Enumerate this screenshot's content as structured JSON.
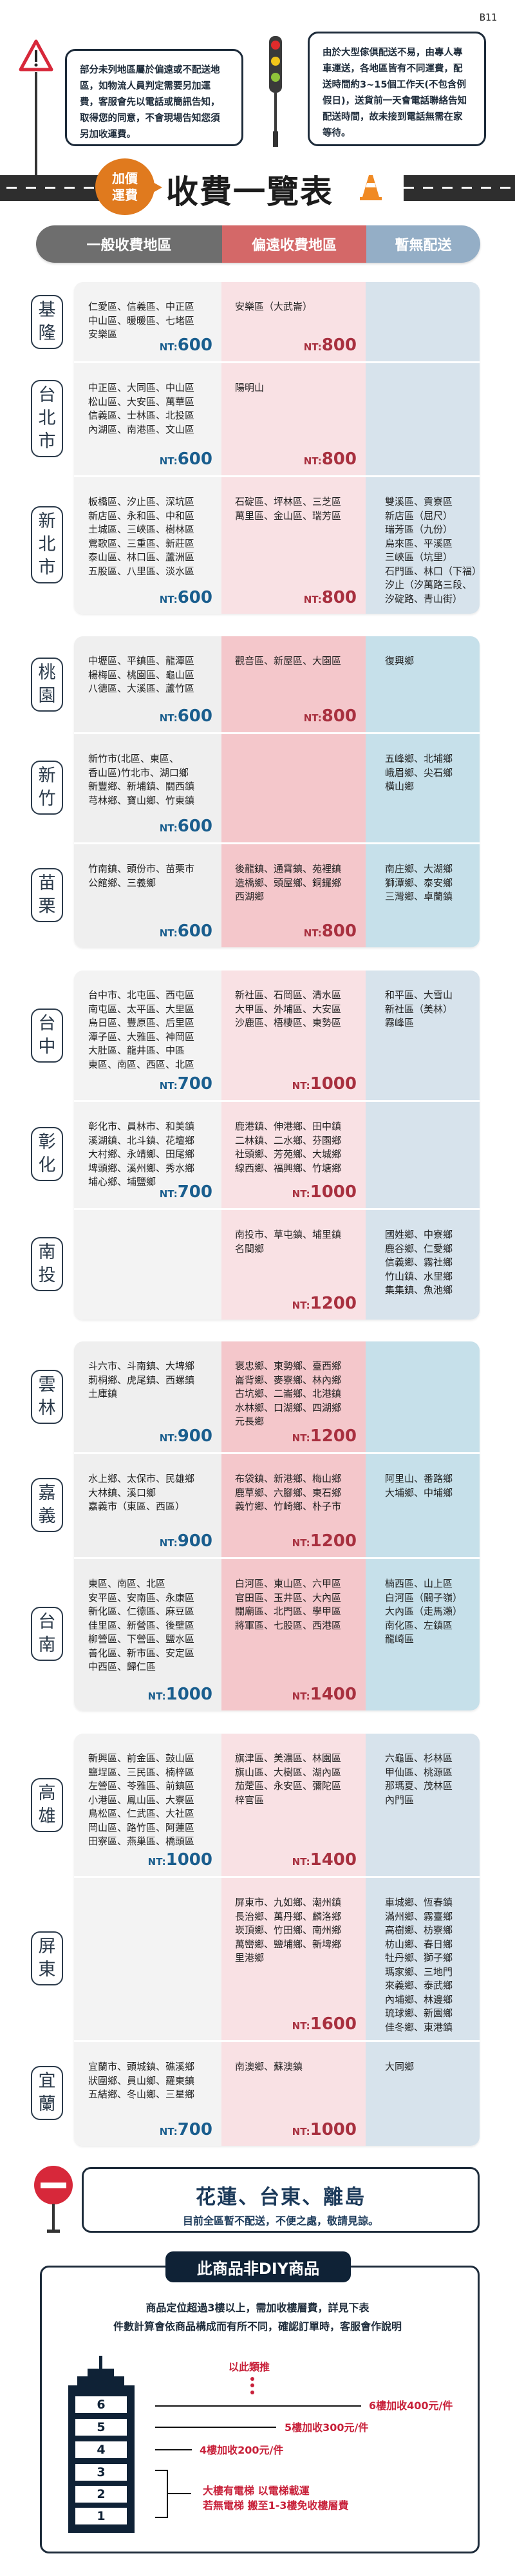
{
  "page_code": "B11",
  "notes": {
    "left": "部分未列地區屬於偏遠或不配送地區，如物流人員判定需要另加運費，客服會先以電話或簡訊告知，取得您的同意，不會現場告知您須另加收運費。",
    "right": "由於大型傢俱配送不易，由專人專車運送，各地區皆有不同運費，配送時間約3~15個工作天(不包含例假日)，送貨前一天會電話聯絡告知配送時間，故未接到電話無需在家等待。"
  },
  "header": {
    "badge_line1": "加價",
    "badge_line2": "運費",
    "title": "收費一覽表"
  },
  "tabs": [
    {
      "label": "一般收費地區",
      "color": "#6e6e6e"
    },
    {
      "label": "偏遠收費地區",
      "color": "#d46868"
    },
    {
      "label": "暫無配送",
      "color": "#94aec6"
    }
  ],
  "price_prefix": "NT:",
  "blocks": [
    {
      "rows": [
        {
          "region": "基隆",
          "general": [
            "仁愛區、信義區、中正區",
            "中山區、暖暖區、七堵區",
            "安樂區"
          ],
          "general_price": "600",
          "remote": [
            "安樂區（大武崙）"
          ],
          "remote_price": "800",
          "none": []
        },
        {
          "region": "台北市",
          "general": [
            "中正區、大同區、中山區",
            "松山區、大安區、萬華區",
            "信義區、士林區、北投區",
            "內湖區、南港區、文山區"
          ],
          "general_price": "600",
          "remote": [
            "陽明山"
          ],
          "remote_price": "800",
          "none": []
        },
        {
          "region": "新北市",
          "general": [
            "板橋區、汐止區、深坑區",
            "新店區、永和區、中和區",
            "土城區、三峽區、樹林區",
            "鶯歌區、三重區、新莊區",
            "泰山區、林口區、蘆洲區",
            "五股區、八里區、淡水區"
          ],
          "general_price": "600",
          "remote": [
            "石碇區、坪林區、三芝區",
            "萬里區、金山區、瑞芳區"
          ],
          "remote_price": "800",
          "none": [
            "雙溪區、貢寮區",
            "新店區（屈尺）",
            "瑞芳區（九份）",
            "烏來區、平溪區",
            "三峽區（坑里）",
            "石門區、林口（下福）",
            "汐止（汐萬路三段、",
            "汐碇路、青山街）"
          ]
        }
      ]
    },
    {
      "rows": [
        {
          "region": "桃園",
          "general": [
            "中壢區、平鎮區、龍潭區",
            "楊梅區、桃園區、龜山區",
            "八德區、大溪區、蘆竹區"
          ],
          "general_price": "600",
          "remote": [
            "觀音區、新屋區、大園區"
          ],
          "remote_price": "800",
          "none": [
            "復興鄉"
          ]
        },
        {
          "region": "新竹",
          "general": [
            "新竹市(北區、東區、",
            "香山區)竹北市、湖口鄉",
            "新豐鄉、新埔鎮、關西鎮",
            "芎林鄉、寶山鄉、竹東鎮"
          ],
          "general_price": "600",
          "remote": [],
          "remote_price": "",
          "none": [
            "五峰鄉、北埔鄉",
            "峨眉鄉、尖石鄉",
            "橫山鄉"
          ]
        },
        {
          "region": "苗栗",
          "general": [
            "竹南鎮、頭份市、苗栗市",
            "公館鄉、三義鄉"
          ],
          "general_price": "600",
          "remote": [
            "後龍鎮、通霄鎮、苑裡鎮",
            "造橋鄉、頭屋鄉、銅鑼鄉",
            "西湖鄉"
          ],
          "remote_price": "800",
          "none": [
            "南庄鄉、大湖鄉",
            "獅潭鄉、泰安鄉",
            "三灣鄉、卓蘭鎮"
          ]
        }
      ]
    },
    {
      "rows": [
        {
          "region": "台中",
          "general": [
            "台中市、北屯區、西屯區",
            "南屯區、太平區、大里區",
            "烏日區、豐原區、后里區",
            "潭子區、大雅區、神岡區",
            "大肚區、龍井區、中區",
            "東區、南區、西區、北區"
          ],
          "general_price": "700",
          "remote": [
            "新社區、石岡區、清水區",
            "大甲區、外埔區、大安區",
            "沙鹿區、梧棲區、東勢區"
          ],
          "remote_price": "1000",
          "none": [
            "和平區、大雪山",
            "新社區（美林）",
            "霧峰區"
          ]
        },
        {
          "region": "彰化",
          "general": [
            "彰化市、員林市、和美鎮",
            "溪湖鎮、北斗鎮、花壇鄉",
            "大村鄉、永靖鄉、田尾鄉",
            "埤頭鄉、溪州鄉、秀水鄉",
            "埔心鄉、埔鹽鄉"
          ],
          "general_price": "700",
          "remote": [
            "鹿港鎮、伸港鄉、田中鎮",
            "二林鎮、二水鄉、芬園鄉",
            "社頭鄉、芳苑鄉、大城鄉",
            "線西鄉、福興鄉、竹塘鄉"
          ],
          "remote_price": "1000",
          "none": []
        },
        {
          "region": "南投",
          "general": [],
          "general_price": "",
          "remote": [
            "南投市、草屯鎮、埔里鎮",
            "名間鄉"
          ],
          "remote_price": "1200",
          "none": [
            "國姓鄉、中寮鄉",
            "鹿谷鄉、仁愛鄉",
            "信義鄉、霧社鄉",
            "竹山鎮、水里鄉",
            "集集鎮、魚池鄉"
          ]
        }
      ]
    },
    {
      "rows": [
        {
          "region": "雲林",
          "general": [
            "斗六市、斗南鎮、大埤鄉",
            "莿桐鄉、虎尾鎮、西螺鎮",
            "土庫鎮"
          ],
          "general_price": "900",
          "remote": [
            "褒忠鄉、東勢鄉、臺西鄉",
            "崙背鄉、麥寮鄉、林內鄉",
            "古坑鄉、二崙鄉、北港鎮",
            "水林鄉、口湖鄉、四湖鄉",
            "元長鄉"
          ],
          "remote_price": "1200",
          "none": []
        },
        {
          "region": "嘉義",
          "general": [
            "水上鄉、太保市、民雄鄉",
            "大林鎮、溪口鄉",
            "嘉義市（東區、西區）"
          ],
          "general_price": "900",
          "remote": [
            "布袋鎮、新港鄉、梅山鄉",
            "鹿草鄉、六腳鄉、東石鄉",
            "義竹鄉、竹崎鄉、朴子市"
          ],
          "remote_price": "1200",
          "none": [
            "阿里山、番路鄉",
            "大埔鄉、中埔鄉"
          ]
        },
        {
          "region": "台南",
          "general": [
            "東區、南區、北區",
            "安平區、安南區、永康區",
            "新化區、仁德區、麻豆區",
            "佳里區、新營區、後壁區",
            "柳營區、下營區、鹽水區",
            "善化區、新市區、安定區",
            "中西區、歸仁區"
          ],
          "general_price": "1000",
          "remote": [
            "白河區、東山區、六甲區",
            "官田區、玉井區、大內區",
            "關廟區、北門區、學甲區",
            "將軍區、七股區、西港區"
          ],
          "remote_price": "1400",
          "none": [
            "楠西區、山上區",
            "白河區（關子嶺）",
            "大內區（走馬瀨）",
            "南化區、左鎮區",
            "龍崎區"
          ]
        }
      ]
    },
    {
      "rows": [
        {
          "region": "高雄",
          "general": [
            "新興區、前金區、鼓山區",
            "鹽埕區、三民區、楠梓區",
            "左營區、苓雅區、前鎮區",
            "小港區、鳳山區、大寮區",
            "鳥松區、仁武區、大社區",
            "岡山區、路竹區、阿蓮區",
            "田寮區、燕巢區、橋頭區"
          ],
          "general_price": "1000",
          "remote": [
            "旗津區、美濃區、林園區",
            "旗山區、大樹區、湖內區",
            "茄萣區、永安區、彌陀區",
            "梓官區"
          ],
          "remote_price": "1400",
          "none": [
            "六龜區、杉林區",
            "甲仙區、桃源區",
            "那瑪夏、茂林區",
            "內門區"
          ]
        },
        {
          "region": "屏東",
          "general": [],
          "general_price": "",
          "remote": [
            "屏東市、九如鄉、潮州鎮",
            "長治鄉、萬丹鄉、麟洛鄉",
            "崁頂鄉、竹田鄉、南州鄉",
            "萬巒鄉、鹽埔鄉、新埤鄉",
            "里港鄉"
          ],
          "remote_price": "1600",
          "none": [
            "車城鄉、恆春鎮",
            "滿州鄉、霧臺鄉",
            "高樹鄉、枋寮鄉",
            "枋山鄉、春日鄉",
            "牡丹鄉、獅子鄉",
            "瑪家鄉、三地門",
            "來義鄉、泰武鄉",
            "內埔鄉、林邊鄉",
            "琉球鄉、新園鄉",
            "佳冬鄉、東港鎮"
          ]
        },
        {
          "region": "宜蘭",
          "general": [
            "宜蘭市、頭城鎮、礁溪鄉",
            "狀圍鄉、員山鄉、羅東鎮",
            "五結鄉、冬山鄉、三星鄉"
          ],
          "general_price": "700",
          "remote": [
            "南澳鄉、蘇澳鎮"
          ],
          "remote_price": "1000",
          "none": [
            "大同鄉"
          ]
        }
      ]
    }
  ],
  "no_delivery": {
    "title": "花蓮、台東、離島",
    "subtitle": "目前全區暫不配送，不便之處，敬請見諒。"
  },
  "diy": {
    "title": "此商品非DIY商品",
    "line1": "商品定位超過3樓以上，需加收樓層費，詳見下表",
    "line2": "件數計算會依商品構成而有所不同，確認訂單時，客服會作說明",
    "etc": "以此類推",
    "floors": [
      "6",
      "5",
      "4",
      "3",
      "2",
      "1"
    ],
    "fee_6": "6樓加收400元/件",
    "fee_5": "5樓加收300元/件",
    "fee_4": "4樓加收200元/件",
    "elevator_line1": "大樓有電梯 以電梯載運",
    "elevator_line2": "若無電梯 搬至1-3樓免收樓層費"
  },
  "colors": {
    "navy": "#1d2b3a",
    "price_general": "#1a5e8e",
    "price_remote": "#a8303f",
    "accent_orange": "#e07a1e"
  }
}
